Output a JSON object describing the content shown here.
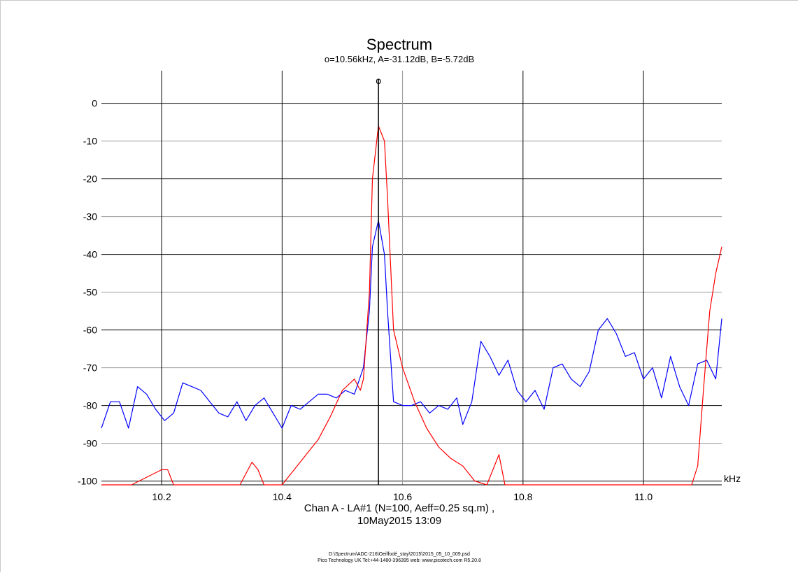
{
  "chart_data": {
    "type": "line",
    "title": "Spectrum",
    "subtitle": "o=10.56kHz, A=-31.12dB, B=-5.72dB",
    "xlabel": "kHz",
    "ylabel": "",
    "xlim": [
      10.1,
      11.13
    ],
    "ylim": [
      -101,
      9
    ],
    "x_ticks": [
      10.2,
      10.4,
      10.6,
      10.8,
      11.0
    ],
    "x_tick_labels": [
      "10.2",
      "10.4",
      "10.6",
      "10.8",
      "11.0"
    ],
    "y_ticks": [
      0,
      -10,
      -20,
      -30,
      -40,
      -50,
      -60,
      -70,
      -80,
      -90,
      -100
    ],
    "y_tick_labels": [
      "0",
      "-10",
      "-20",
      "-30",
      "-40",
      "-50",
      "-60",
      "-70",
      "-80",
      "-90",
      "-100"
    ],
    "grid": true,
    "marker": {
      "symbol": "o",
      "x": 10.56
    },
    "caption_line1": "Chan A - LA#1 (N=100, Aeff=0.25 sq.m) ,",
    "caption_line2": "10May2015  13:09",
    "footer_line1": "D:\\Spectrum\\ADC-216\\Oeiffodé_stay\\2015\\2015_05_10_009.psd",
    "footer_line2": "Pico Technology UK  Tel:+44-1480-396395  web: www.picotech.com  R5.20.8",
    "series": [
      {
        "color": "#0000ff",
        "x": [
          10.1,
          10.115,
          10.13,
          10.145,
          10.16,
          10.175,
          10.19,
          10.205,
          10.22,
          10.235,
          10.25,
          10.265,
          10.28,
          10.295,
          10.31,
          10.325,
          10.34,
          10.355,
          10.37,
          10.385,
          10.4,
          10.415,
          10.43,
          10.445,
          10.46,
          10.475,
          10.49,
          10.505,
          10.52,
          10.535,
          10.545,
          10.55,
          10.56,
          10.57,
          10.575,
          10.585,
          10.6,
          10.615,
          10.63,
          10.645,
          10.66,
          10.675,
          10.69,
          10.7,
          10.715,
          10.73,
          10.745,
          10.76,
          10.775,
          10.79,
          10.805,
          10.82,
          10.835,
          10.85,
          10.865,
          10.88,
          10.895,
          10.91,
          10.925,
          10.94,
          10.955,
          10.97,
          10.985,
          11.0,
          11.015,
          11.03,
          11.045,
          11.06,
          11.075,
          11.09,
          11.105,
          11.12,
          11.13
        ],
        "y": [
          -86,
          -79,
          -79,
          -86,
          -75,
          -77,
          -81,
          -84,
          -82,
          -74,
          -75,
          -76,
          -79,
          -82,
          -83,
          -79,
          -84,
          -80,
          -78,
          -82,
          -86,
          -80,
          -81,
          -79,
          -77,
          -77,
          -78,
          -76,
          -77,
          -70,
          -55,
          -38,
          -31,
          -40,
          -55,
          -79,
          -80,
          -80,
          -79,
          -82,
          -80,
          -81,
          -78,
          -85,
          -79,
          -63,
          -67,
          -72,
          -68,
          -76,
          -79,
          -76,
          -81,
          -70,
          -69,
          -73,
          -75,
          -71,
          -60,
          -57,
          -61,
          -67,
          -66,
          -73,
          -70,
          -78,
          -67,
          -75,
          -80,
          -69,
          -68,
          -73,
          -57
        ]
      },
      {
        "color": "#ff0000",
        "x": [
          10.1,
          10.15,
          10.2,
          10.21,
          10.22,
          10.23,
          10.33,
          10.35,
          10.36,
          10.37,
          10.38,
          10.4,
          10.42,
          10.44,
          10.46,
          10.48,
          10.5,
          10.52,
          10.53,
          10.535,
          10.545,
          10.55,
          10.56,
          10.57,
          10.575,
          10.585,
          10.6,
          10.62,
          10.64,
          10.66,
          10.68,
          10.7,
          10.72,
          10.74,
          10.75,
          10.76,
          10.77,
          10.8,
          10.85,
          10.9,
          10.95,
          11.0,
          11.05,
          11.08,
          11.09,
          11.1,
          11.11,
          11.12,
          11.13
        ],
        "y": [
          -101,
          -101,
          -97,
          -97,
          -101,
          -101,
          -101,
          -95,
          -97,
          -101,
          -101,
          -101,
          -97,
          -93,
          -89,
          -83,
          -76,
          -73,
          -76,
          -73,
          -50,
          -20,
          -6,
          -10,
          -25,
          -60,
          -70,
          -79,
          -86,
          -91,
          -94,
          -96,
          -100,
          -101,
          -97,
          -93,
          -101,
          -101,
          -101,
          -101,
          -101,
          -101,
          -101,
          -101,
          -96,
          -75,
          -55,
          -45,
          -38
        ]
      }
    ]
  }
}
